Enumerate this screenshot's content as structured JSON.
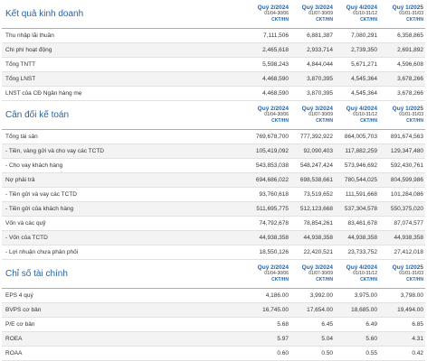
{
  "sections": [
    {
      "title": "Kết quả kinh doanh",
      "columns": [
        {
          "quarter": "Quý 2/2024",
          "range": "01/04-30/06",
          "kind": "CKT/HN"
        },
        {
          "quarter": "Quý 3/2024",
          "range": "01/07-30/09",
          "kind": "CKT/HN"
        },
        {
          "quarter": "Quý 4/2024",
          "range": "01/10-31/12",
          "kind": "CKT/HN"
        },
        {
          "quarter": "Quý 1/2025",
          "range": "01/01-31/03",
          "kind": "CKT/HN"
        }
      ],
      "rows": [
        {
          "label": "Thu nhập lãi thuần",
          "values": [
            "7,111,506",
            "6,881,387",
            "7,080,291",
            "6,358,865"
          ]
        },
        {
          "label": "Chi phí hoạt động",
          "values": [
            "2,465,618",
            "2,933,714",
            "2,739,350",
            "2,691,892"
          ]
        },
        {
          "label": "Tổng TNTT",
          "values": [
            "5,598,243",
            "4,844,044",
            "5,671,271",
            "4,596,608"
          ]
        },
        {
          "label": "Tổng LNST",
          "values": [
            "4,468,590",
            "3,870,395",
            "4,545,364",
            "3,678,266"
          ]
        },
        {
          "label": "LNST của CĐ Ngân hàng mẹ",
          "values": [
            "4,468,590",
            "3,870,395",
            "4,545,364",
            "3,678,266"
          ]
        }
      ]
    },
    {
      "title": "Cân đối kế toán",
      "columns": [
        {
          "quarter": "Quý 2/2024",
          "range": "01/04-30/06",
          "kind": "CKT/HN"
        },
        {
          "quarter": "Quý 3/2024",
          "range": "01/07-30/09",
          "kind": "CKT/HN"
        },
        {
          "quarter": "Quý 4/2024",
          "range": "01/10-31/12",
          "kind": "CKT/HN"
        },
        {
          "quarter": "Quý 1/2025",
          "range": "01/01-31/03",
          "kind": "CKT/HN"
        }
      ],
      "rows": [
        {
          "label": "Tổng tài sản",
          "values": [
            "769,678,700",
            "777,392,922",
            "864,005,703",
            "891,674,563"
          ]
        },
        {
          "label": "- Tiền, vàng gửi và cho vay các TCTD",
          "values": [
            "105,419,092",
            "92,090,403",
            "117,882,259",
            "129,347,480"
          ]
        },
        {
          "label": "- Cho vay khách hàng",
          "values": [
            "543,853,038",
            "548,247,424",
            "573,946,692",
            "592,430,761"
          ]
        },
        {
          "label": "Nợ phải trả",
          "values": [
            "694,686,022",
            "698,538,661",
            "780,544,025",
            "804,599,986"
          ]
        },
        {
          "label": "- Tiền gửi và vay các TCTD",
          "values": [
            "93,760,618",
            "73,519,652",
            "111,591,668",
            "101,284,086"
          ]
        },
        {
          "label": "- Tiền gửi của khách hàng",
          "values": [
            "511,695,775",
            "512,123,668",
            "537,304,578",
            "550,375,020"
          ]
        },
        {
          "label": "Vốn và các quỹ",
          "values": [
            "74,792,678",
            "78,854,261",
            "83,461,678",
            "87,074,577"
          ]
        },
        {
          "label": "- Vốn của TCTD",
          "values": [
            "44,938,358",
            "44,938,358",
            "44,938,358",
            "44,938,358"
          ]
        },
        {
          "label": "- Lợi nhuận chưa phân phối",
          "values": [
            "18,550,126",
            "22,420,521",
            "23,733,752",
            "27,412,018"
          ]
        }
      ]
    },
    {
      "title": "Chỉ số tài chính",
      "columns": [
        {
          "quarter": "Quý 2/2024",
          "range": "01/04-30/06",
          "kind": "CKT/HN"
        },
        {
          "quarter": "Quý 3/2024",
          "range": "01/07-30/09",
          "kind": "CKT/HN"
        },
        {
          "quarter": "Quý 4/2024",
          "range": "01/10-31/12",
          "kind": "CKT/HN"
        },
        {
          "quarter": "Quý 1/2025",
          "range": "01/01-31/03",
          "kind": "CKT/HN"
        }
      ],
      "rows": [
        {
          "label": "EPS 4 quý",
          "values": [
            "4,186.00",
            "3,992.00",
            "3,975.00",
            "3,798.00"
          ]
        },
        {
          "label": "BVPS cơ bản",
          "values": [
            "16,745.00",
            "17,654.00",
            "18,685.00",
            "19,494.00"
          ]
        },
        {
          "label": "P/E cơ bản",
          "values": [
            "5.68",
            "6.45",
            "6.49",
            "6.85"
          ]
        },
        {
          "label": "ROEA",
          "values": [
            "5.97",
            "5.04",
            "5.60",
            "4.31"
          ]
        },
        {
          "label": "ROAA",
          "values": [
            "0.60",
            "0.50",
            "0.55",
            "0.42"
          ]
        }
      ]
    }
  ]
}
